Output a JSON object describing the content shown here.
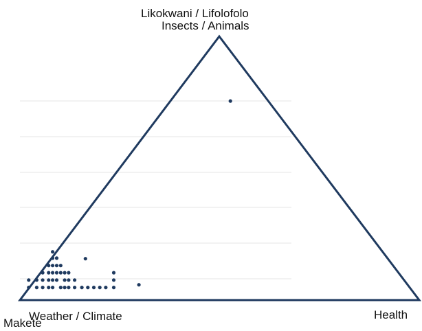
{
  "chart_data": {
    "type": "scatter",
    "corners": {
      "top_primary": "Likokwani / Lifolofolo",
      "top_secondary": "Insects / Animals",
      "bottom_left_primary": "Weather / Climate",
      "bottom_left_secondary": "Makete",
      "bottom_right": "Health"
    },
    "colors": {
      "triangle": "#1f3a5f",
      "points": "#1f3a5f",
      "grid": "#e6e6e6"
    },
    "grid": true,
    "points_note": "x = rightward position toward Health (0-1), y = upward position toward Insects/Animals (0-1)",
    "points": [
      {
        "x": 0.527,
        "y": 0.755
      },
      {
        "x": 0.022,
        "y": 0.048
      },
      {
        "x": 0.022,
        "y": 0.076
      },
      {
        "x": 0.042,
        "y": 0.048
      },
      {
        "x": 0.042,
        "y": 0.076
      },
      {
        "x": 0.057,
        "y": 0.048
      },
      {
        "x": 0.057,
        "y": 0.076
      },
      {
        "x": 0.057,
        "y": 0.104
      },
      {
        "x": 0.072,
        "y": 0.048
      },
      {
        "x": 0.072,
        "y": 0.076
      },
      {
        "x": 0.072,
        "y": 0.104
      },
      {
        "x": 0.072,
        "y": 0.131
      },
      {
        "x": 0.082,
        "y": 0.048
      },
      {
        "x": 0.082,
        "y": 0.076
      },
      {
        "x": 0.082,
        "y": 0.104
      },
      {
        "x": 0.082,
        "y": 0.131
      },
      {
        "x": 0.082,
        "y": 0.159
      },
      {
        "x": 0.082,
        "y": 0.183
      },
      {
        "x": 0.092,
        "y": 0.076
      },
      {
        "x": 0.092,
        "y": 0.104
      },
      {
        "x": 0.092,
        "y": 0.131
      },
      {
        "x": 0.092,
        "y": 0.159
      },
      {
        "x": 0.102,
        "y": 0.048
      },
      {
        "x": 0.102,
        "y": 0.104
      },
      {
        "x": 0.102,
        "y": 0.131
      },
      {
        "x": 0.112,
        "y": 0.048
      },
      {
        "x": 0.112,
        "y": 0.076
      },
      {
        "x": 0.112,
        "y": 0.104
      },
      {
        "x": 0.122,
        "y": 0.048
      },
      {
        "x": 0.122,
        "y": 0.076
      },
      {
        "x": 0.122,
        "y": 0.104
      },
      {
        "x": 0.137,
        "y": 0.048
      },
      {
        "x": 0.137,
        "y": 0.076
      },
      {
        "x": 0.155,
        "y": 0.048
      },
      {
        "x": 0.17,
        "y": 0.048
      },
      {
        "x": 0.185,
        "y": 0.048
      },
      {
        "x": 0.2,
        "y": 0.048
      },
      {
        "x": 0.215,
        "y": 0.048
      },
      {
        "x": 0.235,
        "y": 0.048
      },
      {
        "x": 0.235,
        "y": 0.076
      },
      {
        "x": 0.235,
        "y": 0.104
      },
      {
        "x": 0.164,
        "y": 0.157
      },
      {
        "x": 0.298,
        "y": 0.058
      }
    ]
  }
}
